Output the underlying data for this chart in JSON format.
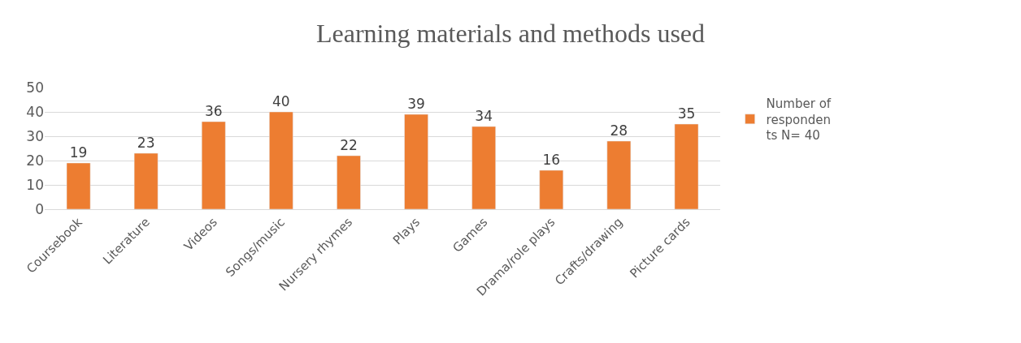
{
  "chart_data": {
    "type": "bar",
    "title": "Learning materials and methods used",
    "categories": [
      "Coursebook",
      "Literature",
      "Videos",
      "Songs/music",
      "Nursery rhymes",
      "Plays",
      "Games",
      "Drama/role plays",
      "Crafts/drawing",
      "Picture cards"
    ],
    "series": [
      {
        "name": "Number of respondents N= 40",
        "color": "#ed7d31",
        "values": [
          19,
          23,
          36,
          40,
          22,
          39,
          34,
          16,
          28,
          35
        ]
      }
    ],
    "ylim": [
      0,
      50
    ],
    "yticks": [
      0,
      10,
      20,
      30,
      40,
      50
    ],
    "grid": "y",
    "legend": "right",
    "data_labels": true
  }
}
